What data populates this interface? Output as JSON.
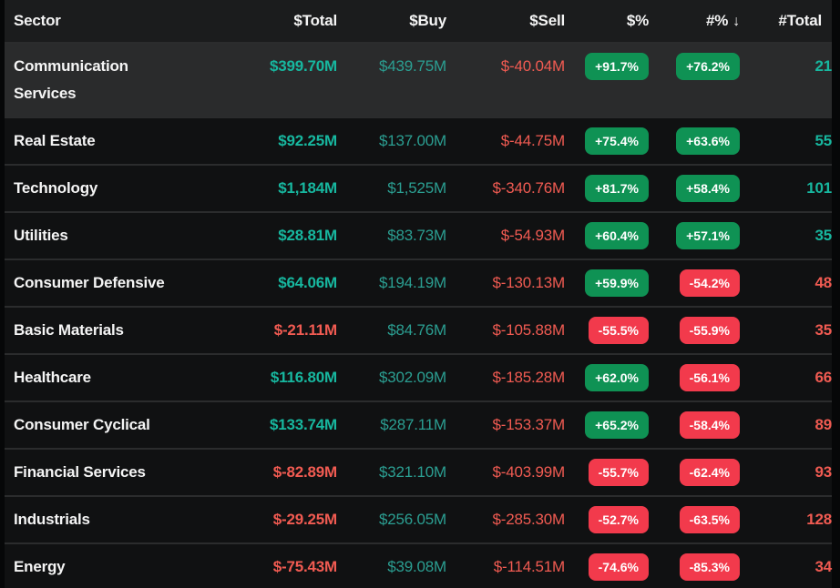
{
  "table": {
    "columns": [
      {
        "label": "Sector"
      },
      {
        "label": "$Total"
      },
      {
        "label": "$Buy"
      },
      {
        "label": "$Sell"
      },
      {
        "label": "$%"
      },
      {
        "label": "#%",
        "sorted": "desc"
      },
      {
        "label": "#Total"
      }
    ],
    "sort_icon": "↓",
    "rows": [
      {
        "sector": "Communication Services",
        "total": "$399.70M",
        "buy": "$439.75M",
        "sell": "$-40.04M",
        "dollar_pct": "+91.7%",
        "count_pct": "+76.2%",
        "count": "21",
        "highlighted": true
      },
      {
        "sector": "Real Estate",
        "total": "$92.25M",
        "buy": "$137.00M",
        "sell": "$-44.75M",
        "dollar_pct": "+75.4%",
        "count_pct": "+63.6%",
        "count": "55",
        "highlighted": false
      },
      {
        "sector": "Technology",
        "total": "$1,184M",
        "buy": "$1,525M",
        "sell": "$-340.76M",
        "dollar_pct": "+81.7%",
        "count_pct": "+58.4%",
        "count": "101",
        "highlighted": false
      },
      {
        "sector": "Utilities",
        "total": "$28.81M",
        "buy": "$83.73M",
        "sell": "$-54.93M",
        "dollar_pct": "+60.4%",
        "count_pct": "+57.1%",
        "count": "35",
        "highlighted": false
      },
      {
        "sector": "Consumer Defensive",
        "total": "$64.06M",
        "buy": "$194.19M",
        "sell": "$-130.13M",
        "dollar_pct": "+59.9%",
        "count_pct": "-54.2%",
        "count": "48",
        "highlighted": false
      },
      {
        "sector": "Basic Materials",
        "total": "$-21.11M",
        "buy": "$84.76M",
        "sell": "$-105.88M",
        "dollar_pct": "-55.5%",
        "count_pct": "-55.9%",
        "count": "35",
        "highlighted": false
      },
      {
        "sector": "Healthcare",
        "total": "$116.80M",
        "buy": "$302.09M",
        "sell": "$-185.28M",
        "dollar_pct": "+62.0%",
        "count_pct": "-56.1%",
        "count": "66",
        "highlighted": false
      },
      {
        "sector": "Consumer Cyclical",
        "total": "$133.74M",
        "buy": "$287.11M",
        "sell": "$-153.37M",
        "dollar_pct": "+65.2%",
        "count_pct": "-58.4%",
        "count": "89",
        "highlighted": false
      },
      {
        "sector": "Financial Services",
        "total": "$-82.89M",
        "buy": "$321.10M",
        "sell": "$-403.99M",
        "dollar_pct": "-55.7%",
        "count_pct": "-62.4%",
        "count": "93",
        "highlighted": false
      },
      {
        "sector": "Industrials",
        "total": "$-29.25M",
        "buy": "$256.05M",
        "sell": "$-285.30M",
        "dollar_pct": "-52.7%",
        "count_pct": "-63.5%",
        "count": "128",
        "highlighted": false
      },
      {
        "sector": "Energy",
        "total": "$-75.43M",
        "buy": "$39.08M",
        "sell": "$-114.51M",
        "dollar_pct": "-74.6%",
        "count_pct": "-85.3%",
        "count": "34",
        "highlighted": false
      }
    ]
  },
  "colors": {
    "positive_text": "#17b79f",
    "buy_text": "#2b9f92",
    "negative_text": "#f15b52",
    "badge_positive_bg": "#0f9254",
    "badge_negative_bg": "#f23a4c",
    "header_bg": "#1b1c1d",
    "row_bg": "#101112",
    "row_highlight_bg": "#2a2b2c",
    "page_bg": "#060708"
  }
}
